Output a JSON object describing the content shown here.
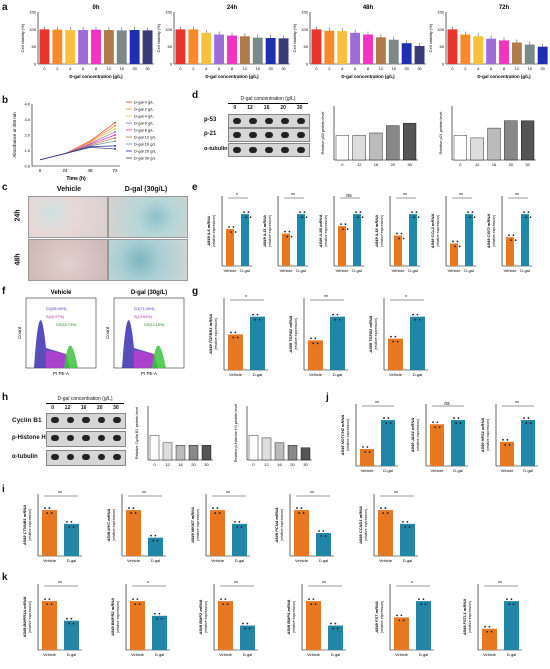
{
  "panel_letters": {
    "a": "a",
    "b": "b",
    "c": "c",
    "d": "d",
    "e": "e",
    "f": "f",
    "g": "g",
    "h": "h",
    "i": "i",
    "j": "j",
    "k": "k"
  },
  "a": {
    "titles": [
      "0h",
      "24h",
      "48h",
      "72h"
    ],
    "xticks": [
      "0",
      "2",
      "4",
      "6",
      "8",
      "12",
      "16",
      "20",
      "30"
    ],
    "xlabel": "D-gal concentration (g/L)",
    "ylabel": "Cell viability (%)",
    "colors": [
      "#e8352c",
      "#f28c28",
      "#f6c23e",
      "#9b6dd6",
      "#f033c4",
      "#b07a4b",
      "#7a8a8a",
      "#1f2fb0",
      "#3a3a7a"
    ],
    "values": [
      [
        100,
        99,
        98,
        98,
        99,
        98,
        97,
        98,
        97
      ],
      [
        100,
        100,
        90,
        85,
        82,
        80,
        76,
        75,
        74
      ],
      [
        100,
        96,
        95,
        90,
        85,
        77,
        70,
        60,
        52
      ],
      [
        100,
        85,
        80,
        73,
        68,
        62,
        56,
        50,
        42
      ]
    ]
  },
  "b": {
    "ylabel": "Absorbance at 450 nm",
    "xlabel": "Time (h)",
    "xticks": [
      "0",
      "24",
      "48",
      "72"
    ],
    "legend": [
      "D-gal 0 g/L",
      "D-gal 2 g/L",
      "D-gal 4 g/L",
      "D-gal 6 g/L",
      "D-gal 8 g/L",
      "D-gal 12 g/L",
      "D-gal 16 g/L",
      "D-gal 20 g/L",
      "D-gal 30 g/L"
    ]
  },
  "c": {
    "col1": "Vehicle",
    "col2": "D-gal (30g/L)",
    "row1": "24h",
    "row2": "48h"
  },
  "d": {
    "header": "D-gal concentration (g/L)",
    "lanes": [
      "0",
      "12",
      "16",
      "20",
      "30"
    ],
    "proteins": [
      "p-53",
      "p-21",
      "α-tubulin"
    ],
    "y1": "Relative p53 protein level",
    "y2": "Relative p21 protein level"
  },
  "e": {
    "genes": [
      "A549 IL6 mRNA",
      "A549 IL11 mRNA",
      "A549 IL1B mRNA",
      "A549 IL18 mRNA",
      "A549 CCL2 mRNA",
      "A549 CSF2 mRNA"
    ],
    "sig": [
      "*",
      "**",
      "ns",
      "**",
      "**",
      "**"
    ],
    "groups": [
      "Vehicle",
      "D-gal"
    ]
  },
  "f": {
    "titles": [
      "Vehicle",
      "D-gal (30g/L)"
    ],
    "xlabel": "PI PE-A",
    "ylabel": "Count",
    "gates": [
      "G1(55.05%)",
      "S(25.07%)",
      "G2(18.73%)",
      "G1(71.00%)",
      "S(14.64%)",
      "G2(13.18%)"
    ]
  },
  "g": {
    "genes": [
      "A549 TGFBR1 mRNA",
      "A549 TGFB2 mRNA",
      "A549 TGFB3 mRNA"
    ],
    "sig": [
      "*",
      "**",
      "*"
    ],
    "groups": [
      "Vehicle",
      "D-gal"
    ]
  },
  "h": {
    "header": "D-gal concentration (g/L)",
    "lanes": [
      "0",
      "12",
      "16",
      "20",
      "30"
    ],
    "proteins": [
      "Cyclin B1",
      "p-Histone H3",
      "α-tubulin"
    ],
    "y1": "Relative Cyclin B1 protein level",
    "y2": "Relative p-Histone H3 protein level"
  },
  "i": {
    "genes": [
      "A549 CTNNB1 mRNA",
      "A549 MYC mRNA",
      "A549 MKI67 mRNA",
      "A549 PCNA mRNA",
      "A549 CCND1 mRNA"
    ],
    "sig": [
      "**",
      "**",
      "**",
      "**",
      "**"
    ],
    "groups": [
      "Vehicle",
      "D-gal"
    ]
  },
  "j": {
    "genes": [
      "A549 NOTCH2 mRNA",
      "A549 JAG1 mRNA",
      "A549 HES1 mRNA"
    ],
    "sig": [
      "**",
      "ns",
      "**"
    ],
    "groups": [
      "Vehicle",
      "D-gal"
    ]
  },
  "k": {
    "genes": [
      "A549 BMPR1A mRNA",
      "A549 BMPR2 mRNA",
      "A549 BMP2 mRNA",
      "A549 BMP4 mRNA",
      "A549 FST mRNA",
      "A549 FSTL1 mRNA"
    ],
    "sig": [
      "**",
      "*",
      "**",
      "**",
      "*",
      "**"
    ],
    "groups": [
      "Vehicle",
      "D-gal"
    ]
  },
  "ylab_rel": "(relative expression)",
  "colors": {
    "vehicle": "#e87722",
    "dgal": "#1f86a8"
  }
}
